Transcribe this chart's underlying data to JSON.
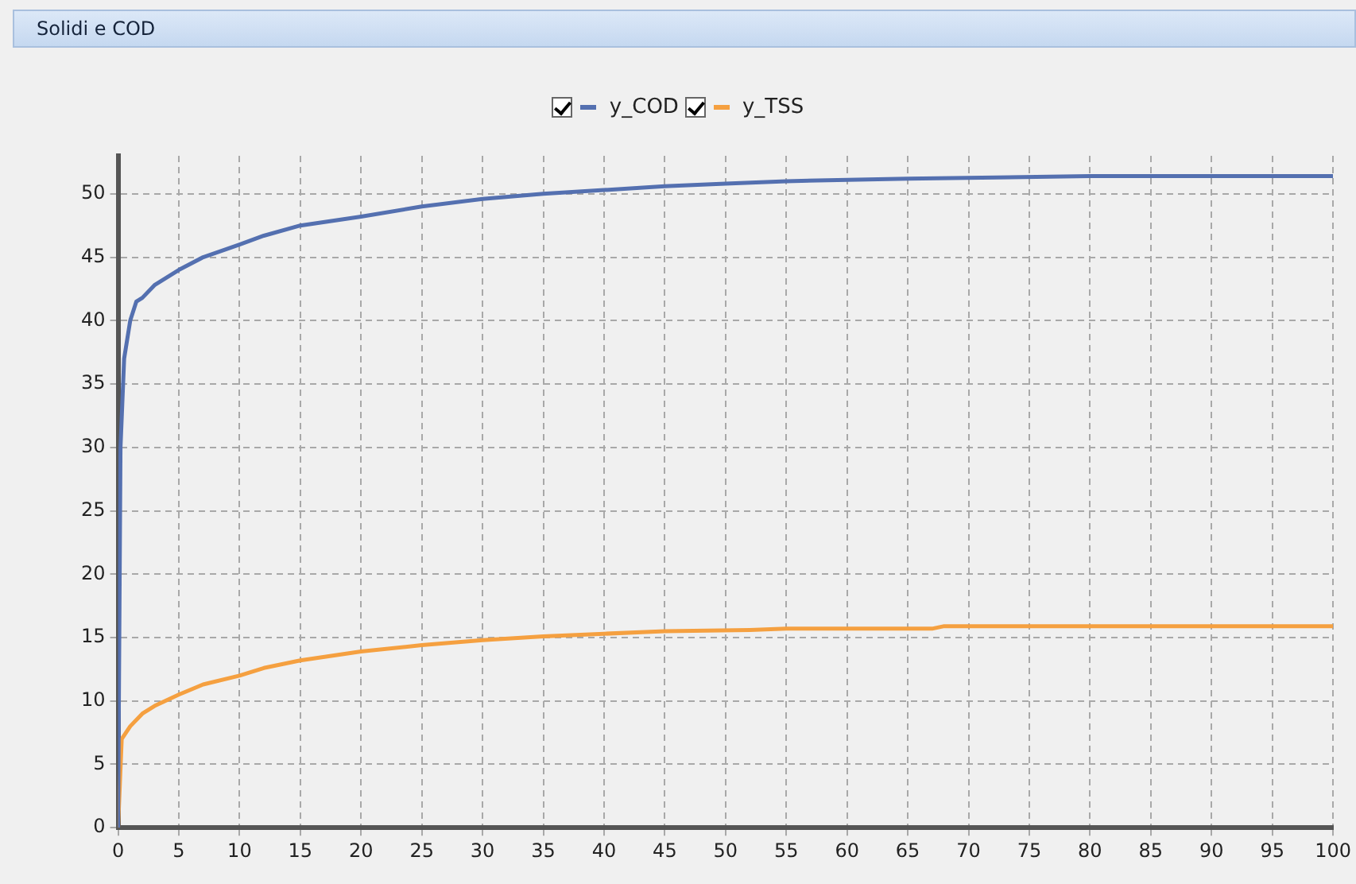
{
  "chart_data": {
    "type": "line",
    "title": "Solidi e COD",
    "xlim": [
      0,
      100
    ],
    "ylim": [
      0,
      53
    ],
    "xticks": [
      0,
      5,
      10,
      15,
      20,
      25,
      30,
      35,
      40,
      45,
      50,
      55,
      60,
      65,
      70,
      75,
      80,
      85,
      90,
      95,
      100
    ],
    "yticks": [
      0,
      5,
      10,
      15,
      20,
      25,
      30,
      35,
      40,
      45,
      50
    ],
    "grid": true,
    "legend": "top",
    "marker": "none",
    "line_style": "solid",
    "series": [
      {
        "name": "y_COD",
        "color": "#5470b0",
        "x": [
          0,
          0.2,
          0.5,
          1,
          1.5,
          2,
          3,
          5,
          7,
          10,
          12,
          15,
          20,
          25,
          30,
          35,
          40,
          45,
          50,
          55,
          65,
          80,
          100
        ],
        "values": [
          0,
          30,
          37,
          40,
          41.5,
          41.8,
          42.8,
          44,
          45,
          46,
          46.7,
          47.5,
          48.2,
          49,
          49.6,
          50,
          50.3,
          50.6,
          50.8,
          51,
          51.2,
          51.4,
          51.4
        ]
      },
      {
        "name": "y_TSS",
        "color": "#f5a040",
        "x": [
          0,
          0.3,
          1,
          2,
          3,
          5,
          7,
          10,
          12,
          15,
          20,
          25,
          30,
          35,
          40,
          45,
          52,
          55,
          67,
          68,
          100
        ],
        "values": [
          0,
          7,
          8,
          9,
          9.6,
          10.5,
          11.3,
          12,
          12.6,
          13.2,
          13.9,
          14.4,
          14.8,
          15.1,
          15.3,
          15.5,
          15.6,
          15.7,
          15.7,
          15.9,
          15.9
        ]
      }
    ]
  }
}
